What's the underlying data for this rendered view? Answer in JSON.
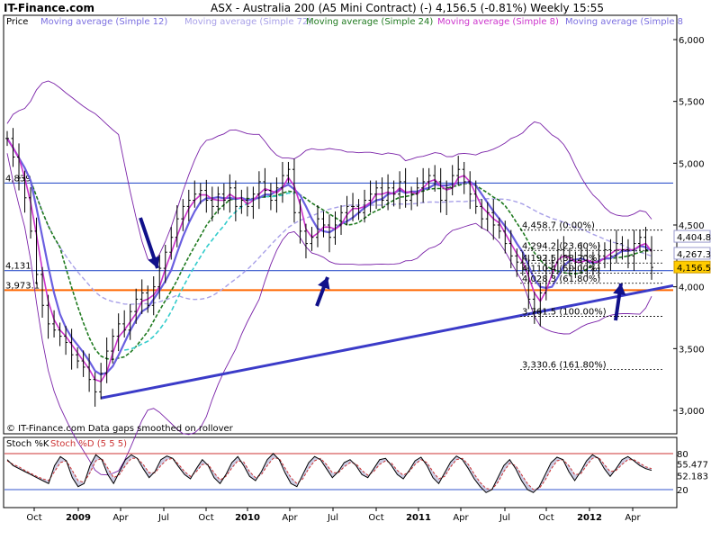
{
  "header": {
    "brand": "IT-Finance.com",
    "title": "ASX - Australia 200 (A5 Mini Contract) (-)   4,156.5 (-0.81%)   Weekly  15:55"
  },
  "legend": [
    {
      "label": "Price",
      "color": "#000000"
    },
    {
      "label": "Moving average (Simple 12)",
      "color": "#7b6fe0"
    },
    {
      "label": "Moving average (Simple 72)",
      "color": "#a8a0e8"
    },
    {
      "label": "Moving average (Simple 24)",
      "color": "#1f7a1f"
    },
    {
      "label": "Moving average (Simple 8)",
      "color": "#cc33cc"
    },
    {
      "label": "Moving average (Simple 8",
      "color": "#7b6fe0"
    }
  ],
  "footer_note": "© IT-Finance.com  Data gaps smoothed on rollover",
  "stoch_label": "Stoch %K",
  "stoch_d_label": "Stoch %D (5 5 5)",
  "colors": {
    "price": "#000000",
    "bollinger": "#7a22a8",
    "ma8": "#cc33cc",
    "ma12": "#6a5fe0",
    "ma24": "#1f7a1f",
    "ma72": "#a8a0e8",
    "cyan_ma": "#33cccc",
    "trendline": "#3b3bc8",
    "hline": "#3355cc",
    "support": "#ff6600",
    "arrow": "#10108a",
    "stoch_k": "#000000",
    "stoch_d": "#cc3333",
    "stoch_fill": "#b8b8d8"
  },
  "chart_data": [
    {
      "type": "line",
      "title": "ASX - Australia 200 (A5 Mini Contract) (-)   4,156.5 (-0.81%)   Weekly  15:55",
      "ylim": [
        2750,
        6150
      ],
      "y_ticks": [
        3000,
        3500,
        4000,
        4500,
        5000,
        5500,
        6000
      ],
      "y_tick_labels": [
        "3,000",
        "3,500",
        "4,000",
        "4,500",
        "5,000",
        "5,500",
        "6,000"
      ],
      "x_ticks": [
        "Oct",
        "2009",
        "Apr",
        "Jul",
        "Oct",
        "2010",
        "Apr",
        "Jul",
        "Oct",
        "2011",
        "Apr",
        "Jul",
        "Oct",
        "2012",
        "Apr"
      ],
      "price_weekly": [
        5200,
        5050,
        4880,
        4720,
        4450,
        4100,
        3850,
        3700,
        3650,
        3600,
        3550,
        3450,
        3400,
        3350,
        3250,
        3150,
        3300,
        3480,
        3600,
        3700,
        3650,
        3800,
        3900,
        3950,
        3850,
        4000,
        4150,
        4280,
        4400,
        4550,
        4650,
        4700,
        4750,
        4780,
        4700,
        4650,
        4750,
        4700,
        4800,
        4650,
        4700,
        4650,
        4750,
        4850,
        4780,
        4700,
        4800,
        4900,
        4950,
        4600,
        4450,
        4350,
        4400,
        4550,
        4500,
        4400,
        4500,
        4600,
        4650,
        4650,
        4600,
        4700,
        4750,
        4800,
        4700,
        4800,
        4750,
        4850,
        4700,
        4750,
        4800,
        4850,
        4900,
        4850,
        4700,
        4800,
        4900,
        4950,
        4850,
        4750,
        4650,
        4550,
        4600,
        4500,
        4450,
        4350,
        4250,
        4200,
        4150,
        3900,
        3800,
        3950,
        4150,
        4200,
        4300,
        4250,
        4150,
        4200,
        4250,
        4200,
        4150,
        4250,
        4300,
        4250,
        4350,
        4300,
        4250,
        4350,
        4400,
        4300,
        4157
      ],
      "annotations": [
        {
          "label": "4,458.7 (0.00%)",
          "value": 4458.7
        },
        {
          "label": "4,294.2 (23.60%)",
          "value": 4294.2
        },
        {
          "label": "4,192.5 (38.20%)",
          "value": 4192.5
        },
        {
          "label": "4,110.4 (50.00%)",
          "value": 4110.4
        },
        {
          "label": "4,028.3 (61.80%)",
          "value": 4028.3
        },
        {
          "label": "3,761.5 (100.00%)",
          "value": 3761.5
        },
        {
          "label": "3,330.6 (161.80%)",
          "value": 3330.6
        }
      ],
      "levels": [
        {
          "label": "4,839",
          "value": 4839
        },
        {
          "label": "4,131",
          "value": 4131
        },
        {
          "label": "3,973.1",
          "value": 3973.1
        }
      ],
      "right_labels": [
        {
          "label": "4,404.8",
          "value": 4404.8
        },
        {
          "label": "4,267.3",
          "value": 4267.3
        },
        {
          "label": "4,156.5",
          "value": 4156.5
        }
      ],
      "trendline": {
        "from": {
          "week": 16,
          "value": 3100
        },
        "to": {
          "week": 125,
          "value": 4010
        }
      }
    },
    {
      "type": "line",
      "title": "Stoch %K Stoch %D (5 5 5)",
      "ylim": [
        0,
        100
      ],
      "y_ticks": [
        20,
        80
      ],
      "y_tick_labels": [
        "20",
        "80"
      ],
      "right_labels": [
        {
          "label": "55.477",
          "value": 55.477
        },
        {
          "label": "52.183",
          "value": 52.183
        }
      ],
      "k_values": [
        70,
        60,
        55,
        50,
        45,
        40,
        35,
        30,
        60,
        75,
        68,
        40,
        25,
        30,
        60,
        78,
        70,
        45,
        30,
        50,
        70,
        78,
        72,
        55,
        40,
        50,
        70,
        76,
        72,
        58,
        45,
        38,
        55,
        70,
        60,
        40,
        30,
        45,
        65,
        75,
        60,
        42,
        35,
        50,
        70,
        80,
        70,
        48,
        30,
        25,
        45,
        65,
        75,
        70,
        55,
        40,
        50,
        65,
        70,
        60,
        45,
        40,
        55,
        70,
        72,
        60,
        45,
        38,
        52,
        68,
        74,
        60,
        40,
        30,
        48,
        66,
        76,
        70,
        55,
        38,
        25,
        15,
        20,
        40,
        60,
        70,
        55,
        35,
        20,
        15,
        25,
        45,
        65,
        74,
        70,
        50,
        35,
        50,
        68,
        78,
        72,
        55,
        42,
        55,
        70,
        75,
        68,
        60,
        55,
        52
      ],
      "d_values": [
        68,
        62,
        58,
        52,
        47,
        42,
        38,
        35,
        50,
        65,
        68,
        52,
        35,
        32,
        48,
        68,
        72,
        56,
        40,
        45,
        60,
        72,
        72,
        62,
        48,
        48,
        60,
        70,
        72,
        62,
        50,
        42,
        50,
        62,
        62,
        48,
        36,
        42,
        56,
        68,
        66,
        50,
        40,
        45,
        60,
        72,
        72,
        56,
        40,
        30,
        38,
        55,
        68,
        72,
        62,
        48,
        48,
        58,
        65,
        63,
        52,
        44,
        50,
        62,
        68,
        64,
        52,
        44,
        50,
        62,
        70,
        65,
        50,
        38,
        42,
        58,
        70,
        72,
        62,
        46,
        32,
        22,
        20,
        32,
        50,
        64,
        60,
        45,
        30,
        20,
        22,
        36,
        54,
        68,
        70,
        60,
        45,
        46,
        60,
        72,
        74,
        62,
        50,
        52,
        62,
        70,
        70,
        64,
        58,
        55
      ]
    }
  ]
}
